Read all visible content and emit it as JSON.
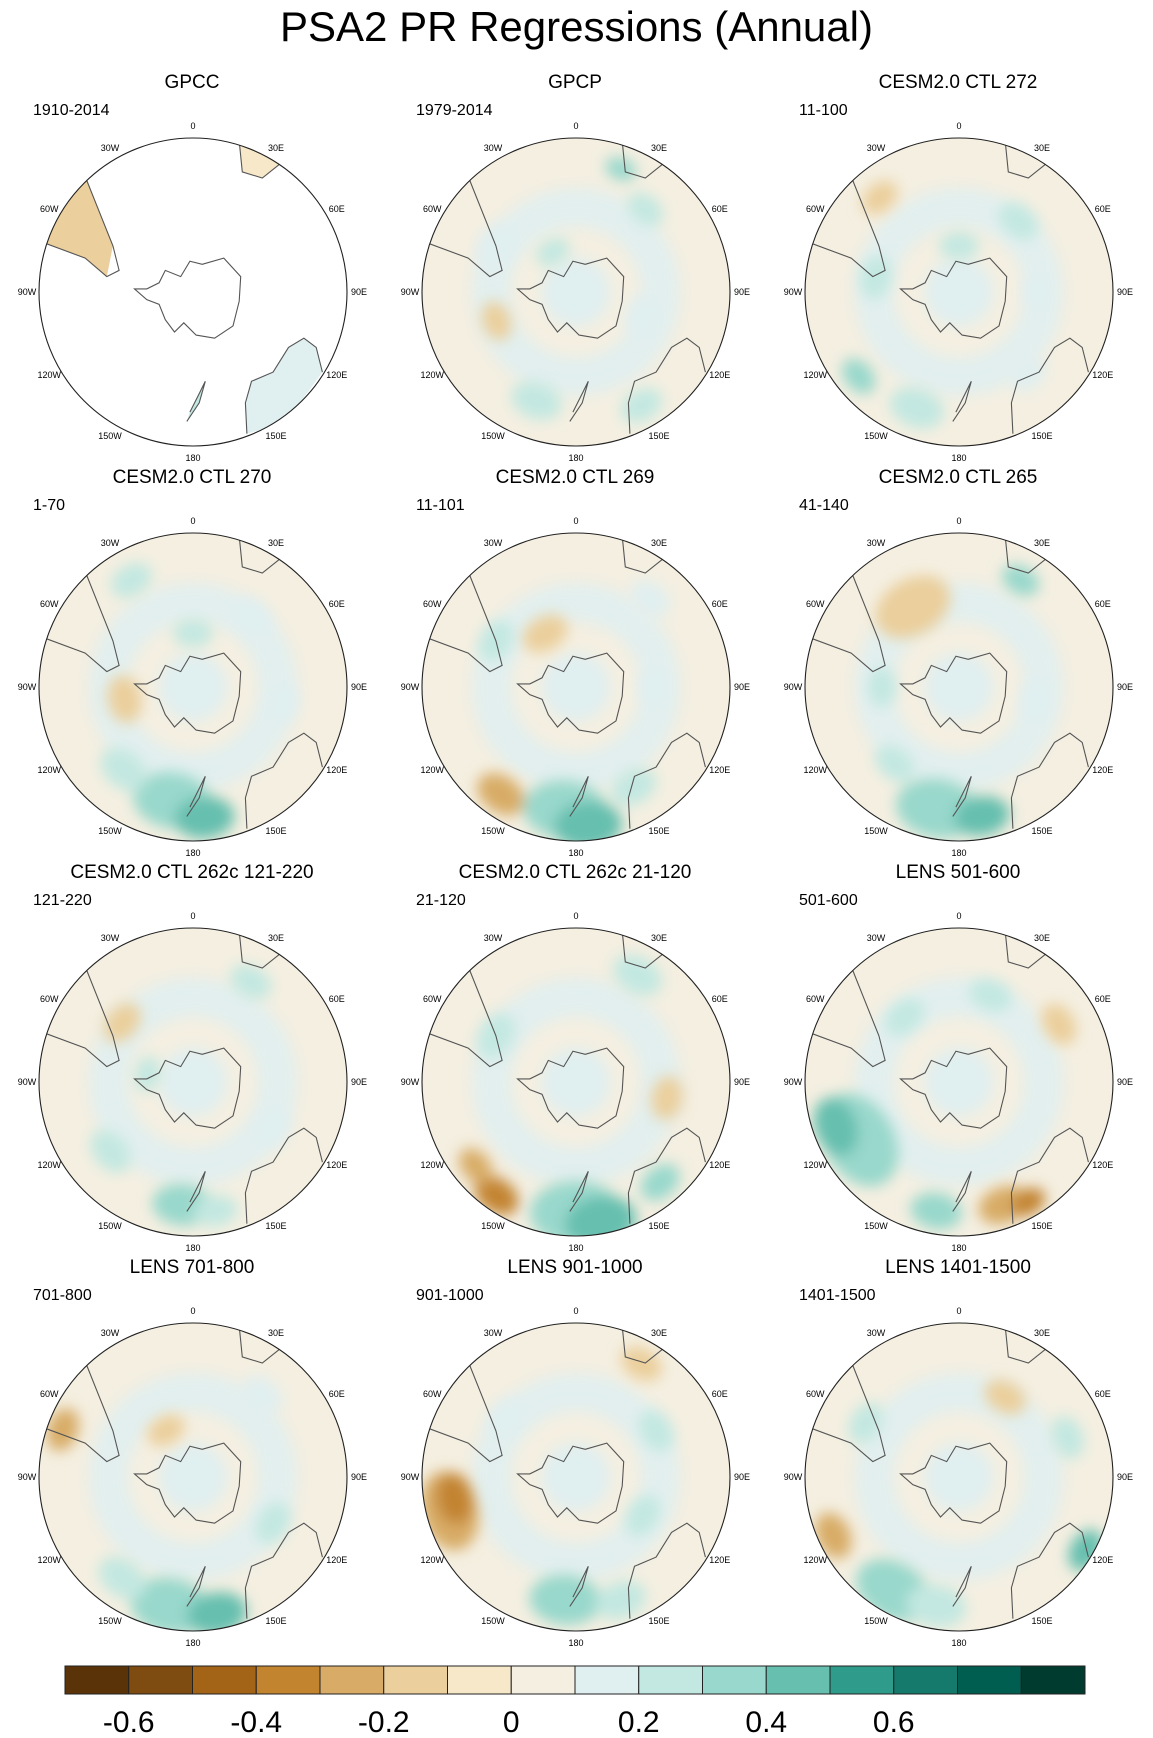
{
  "title": "PSA2 PR Regressions (Annual)",
  "lon_labels": [
    "0",
    "30E",
    "60E",
    "90E",
    "120E",
    "150E",
    "180",
    "150W",
    "120W",
    "90W",
    "60W",
    "30W"
  ],
  "panels": [
    {
      "title": "GPCC",
      "period": "1910-2014",
      "land_only": true
    },
    {
      "title": "GPCP",
      "period": "1979-2014"
    },
    {
      "title": "CESM2.0 CTL 272",
      "period": "11-100"
    },
    {
      "title": "CESM2.0 CTL 270",
      "period": "1-70"
    },
    {
      "title": "CESM2.0 CTL 269",
      "period": "11-101"
    },
    {
      "title": "CESM2.0 CTL 265",
      "period": "41-140"
    },
    {
      "title": "CESM2.0 CTL 262c 121-220",
      "period": "121-220"
    },
    {
      "title": "CESM2.0 CTL 262c 21-120",
      "period": "21-120"
    },
    {
      "title": "LENS 501-600",
      "period": "501-600"
    },
    {
      "title": "LENS 701-800",
      "period": "701-800"
    },
    {
      "title": "LENS 901-1000",
      "period": "901-1000"
    },
    {
      "title": "LENS 1401-1500",
      "period": "1401-1500"
    }
  ],
  "colorbar": {
    "colors": [
      "#5a3408",
      "#7e4c10",
      "#a36418",
      "#c38430",
      "#d8ac66",
      "#ebcf9c",
      "#f6e8c8",
      "#f4efe1",
      "#e0eff0",
      "#c3e8e1",
      "#99d8cc",
      "#66bfaf",
      "#2f9b8b",
      "#157a6c",
      "#005e51",
      "#003b30"
    ],
    "tick_labels": [
      "-0.6",
      "-0.4",
      "-0.2",
      "0",
      "0.2",
      "0.4",
      "0.6"
    ]
  }
}
